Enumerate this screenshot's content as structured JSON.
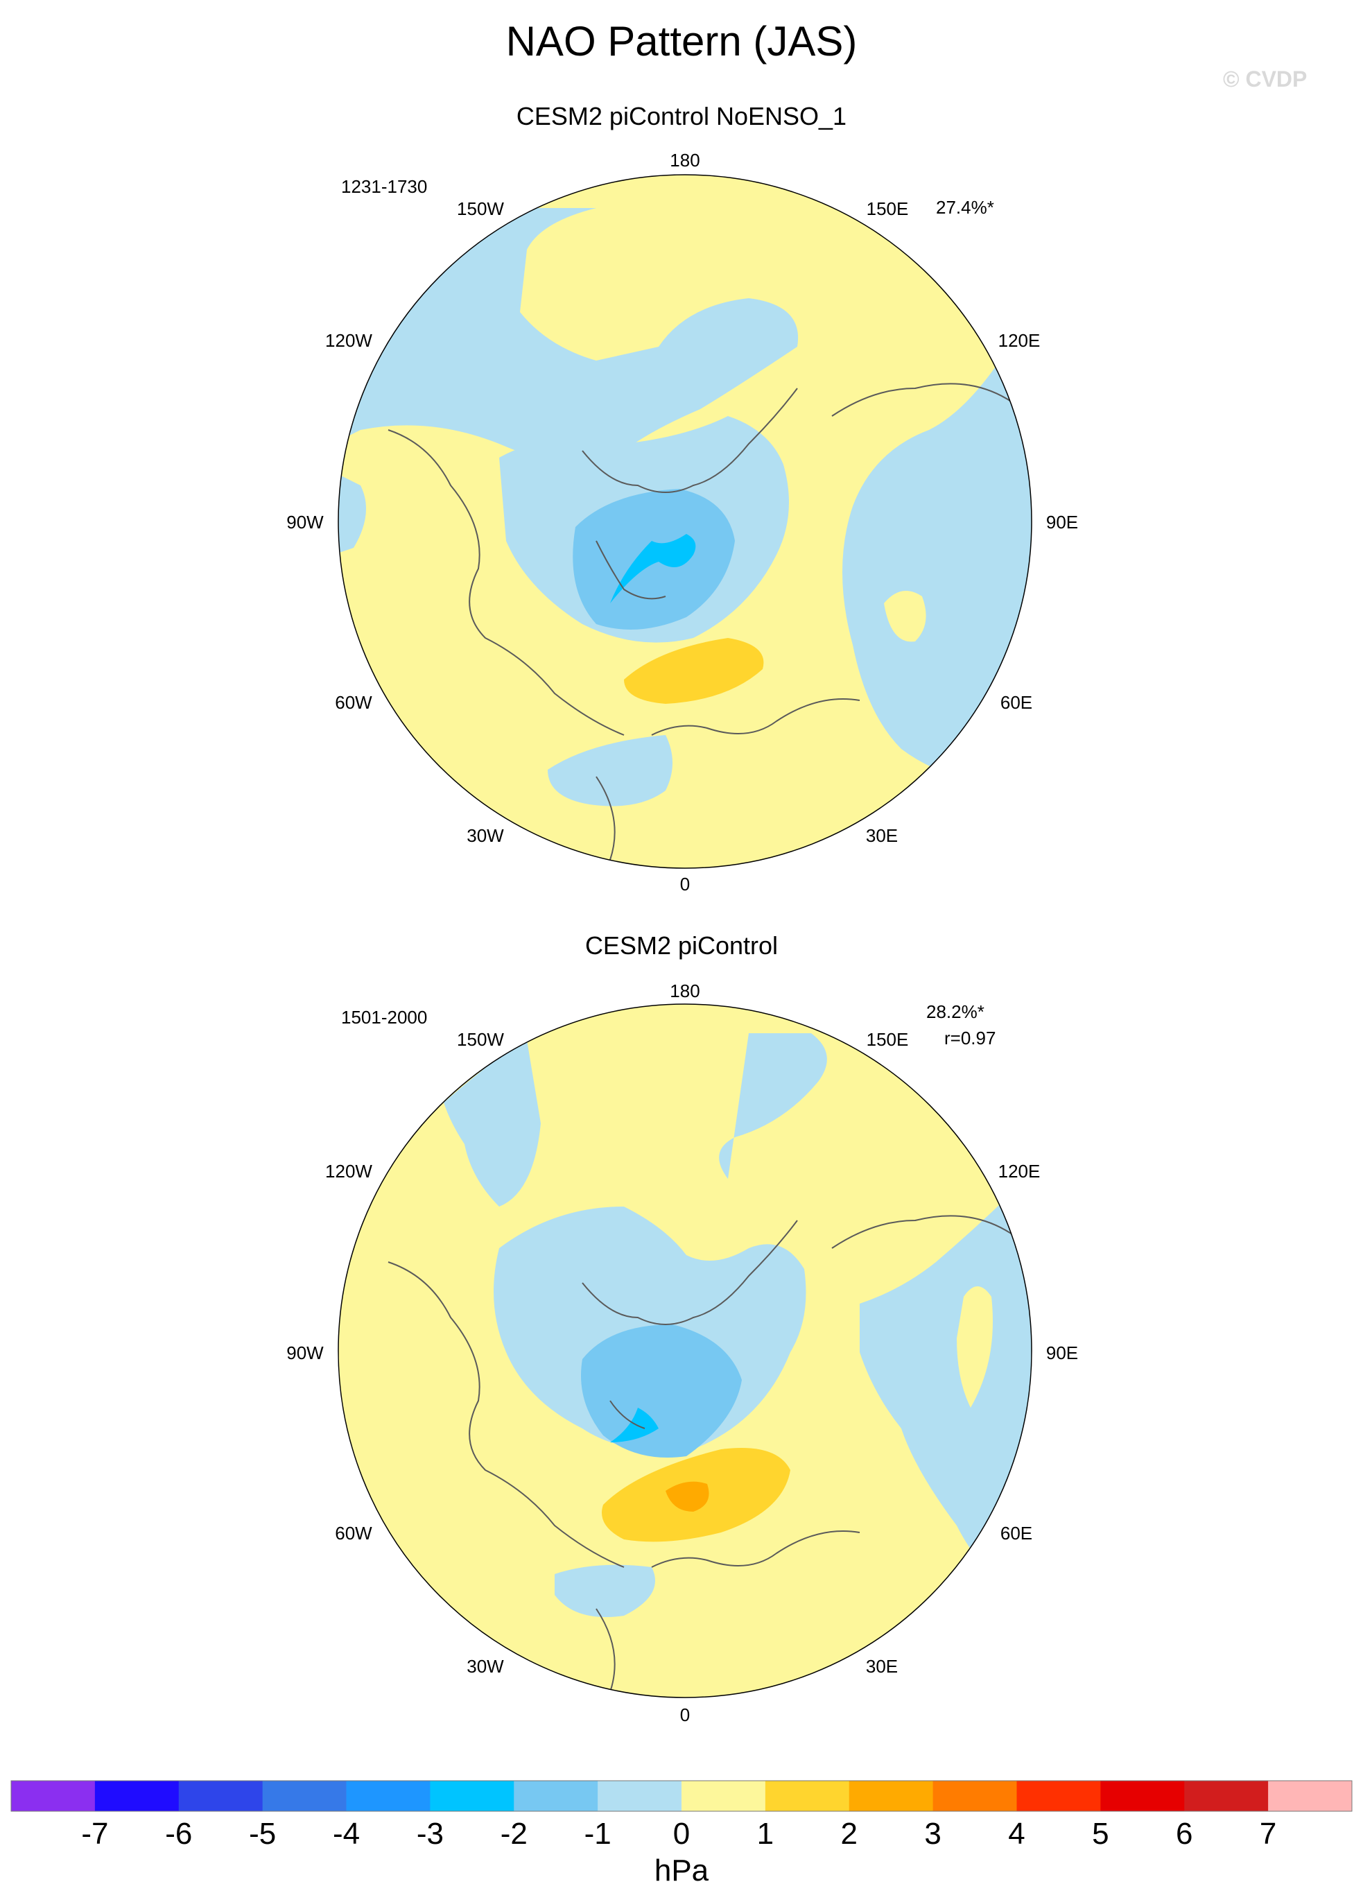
{
  "title": "NAO Pattern (JAS)",
  "watermark": "© CVDP",
  "panels": [
    {
      "name": "CESM2 piControl NoENSO_1",
      "years": "1231-1730",
      "pct_variance": "27.4%*",
      "correlation": ""
    },
    {
      "name": "CESM2 piControl",
      "years": "1501-2000",
      "pct_variance": "28.2%*",
      "correlation": "r=0.97"
    }
  ],
  "longitude_labels": {
    "l180": "180",
    "l150w": "150W",
    "l120w": "120W",
    "l90w": "90W",
    "l60w": "60W",
    "l30w": "30W",
    "l0": "0",
    "l30e": "30E",
    "l60e": "60E",
    "l90e": "90E",
    "l120e": "120E",
    "l150e": "150E"
  },
  "colorbar": {
    "unit": "hPa",
    "tick_labels": [
      "-7",
      "-6",
      "-5",
      "-4",
      "-3",
      "-2",
      "-1",
      "0",
      "1",
      "2",
      "3",
      "4",
      "5",
      "6",
      "7"
    ],
    "colors": [
      "#8b2ff0",
      "#1f0cff",
      "#2e45ea",
      "#3679e8",
      "#1e96ff",
      "#00c4ff",
      "#77c8f2",
      "#b2dff2",
      "#fdf79b",
      "#ffd52e",
      "#ffaa00",
      "#ff7c00",
      "#ff3000",
      "#e60000",
      "#d21d1d",
      "#ffb6b6"
    ]
  },
  "field_colors": {
    "neg1": "#b2dff2",
    "pos1": "#fdf79b",
    "neg2": "#77c8f2",
    "neg3": "#00c4ff",
    "pos2": "#ffd52e",
    "pos3": "#ffaa00",
    "coast": "#5a5a5a"
  }
}
